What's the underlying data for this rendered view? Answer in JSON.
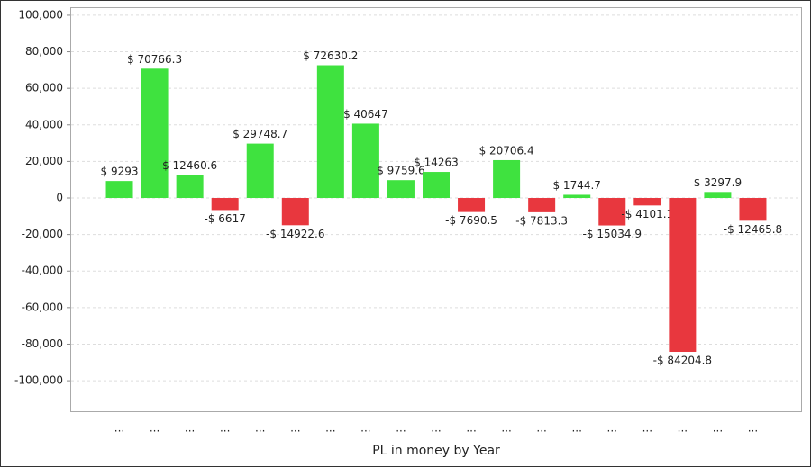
{
  "chart_data": {
    "type": "bar",
    "x_label": "PL in money by Year",
    "categories": [
      "...",
      "...",
      "...",
      "...",
      "...",
      "...",
      "...",
      "...",
      "...",
      "...",
      "...",
      "...",
      "...",
      "...",
      "...",
      "...",
      "...",
      "...",
      "..."
    ],
    "values": [
      9293,
      70766.3,
      12460.6,
      -6617,
      29748.7,
      -14922.6,
      72630.2,
      40647,
      9759.6,
      14263,
      -7690.5,
      20706.4,
      -7813.3,
      1744.7,
      -15034.9,
      -4101.1,
      -84204.8,
      3297.9,
      -12465.8
    ],
    "value_labels": [
      "$ 9293",
      "$ 70766.3",
      "$ 12460.6",
      "-$ 6617",
      "$ 29748.7",
      "-$ 14922.6",
      "$ 72630.2",
      "$ 40647",
      "$ 9759.6",
      "$ 14263",
      "-$ 7690.5",
      "$ 20706.4",
      "-$ 7813.3",
      "$ 1744.7",
      "-$ 15034.9",
      "-$ 4101.1",
      "-$ 84204.8",
      "$ 3297.9",
      "-$ 12465.8"
    ],
    "positive_color": "#3fe23f",
    "negative_color": "#e8373e",
    "ylim": [
      -116700,
      104400
    ],
    "yticks": [
      {
        "value": 100000,
        "label": "100,000"
      },
      {
        "value": 80000,
        "label": "80,000"
      },
      {
        "value": 60000,
        "label": "60,000"
      },
      {
        "value": 40000,
        "label": "40,000"
      },
      {
        "value": 20000,
        "label": "20,000"
      },
      0,
      {
        "value": -20000,
        "label": "-20,000"
      },
      {
        "value": -40000,
        "label": "-40,000"
      },
      {
        "value": -60000,
        "label": "-60,000"
      },
      {
        "value": -80000,
        "label": "-80,000"
      },
      {
        "value": -100000,
        "label": "-100,000"
      }
    ],
    "grid": true
  }
}
